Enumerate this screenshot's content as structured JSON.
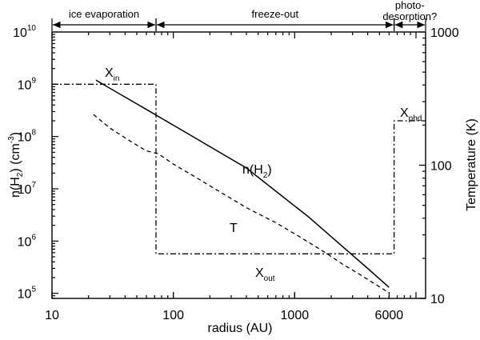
{
  "chart_data": {
    "type": "line",
    "title": "",
    "xlabel": "radius (AU)",
    "ylabel_left": {
      "text": "n(H",
      "sub": "2",
      "mid": ") (cm",
      "sup": "-3",
      "end": ")"
    },
    "ylabel_right": "Temperature (K)",
    "xscale": "log",
    "yscale": "log",
    "xlim": [
      10,
      12000
    ],
    "ylim_left": [
      80000,
      10000000000
    ],
    "ylim_right": [
      10,
      1000
    ],
    "grid": false,
    "x_ticks": [
      {
        "value": 10,
        "label": "10"
      },
      {
        "value": 100,
        "label": "100"
      },
      {
        "value": 1000,
        "label": "1000"
      },
      {
        "value": 6000,
        "label": "6000"
      }
    ],
    "y_ticks_left": [
      {
        "value": 100000,
        "base": "10",
        "exp": "5"
      },
      {
        "value": 1000000,
        "base": "10",
        "exp": "6"
      },
      {
        "value": 10000000,
        "base": "10",
        "exp": "7"
      },
      {
        "value": 100000000,
        "base": "10",
        "exp": "8"
      },
      {
        "value": 1000000000,
        "base": "10",
        "exp": "9"
      },
      {
        "value": 10000000000,
        "base": "10",
        "exp": "10"
      }
    ],
    "y_ticks_right": [
      {
        "value": 10,
        "label": "10"
      },
      {
        "value": 100,
        "label": "100"
      },
      {
        "value": 1000,
        "label": "1000"
      }
    ],
    "regions": [
      {
        "label": "ice evaporation",
        "x_start": 10,
        "x_end": 72
      },
      {
        "label": "freeze-out",
        "x_start": 72,
        "x_end": 6600
      },
      {
        "label_lines": [
          "photo-",
          "desorption?"
        ],
        "x_start": 6600,
        "x_end": 12000
      }
    ],
    "series": [
      {
        "name": "n(H2)",
        "axis": "left",
        "style": "solid",
        "x": [
          23,
          60,
          150,
          400,
          1300,
          2200,
          4000,
          6000
        ],
        "y": [
          1200000000,
          330000000,
          95000000,
          25000000,
          2900000,
          1000000,
          300000,
          130000
        ]
      },
      {
        "name": "T",
        "axis": "right",
        "style": "dashed",
        "x": [
          22,
          30,
          45,
          60,
          75,
          100,
          150,
          250,
          400,
          700,
          1100,
          1800,
          2500,
          3500,
          6000
        ],
        "y": [
          240,
          190,
          150,
          128,
          122,
          102,
          82,
          62,
          48,
          37,
          29,
          22,
          18,
          15,
          11
        ]
      },
      {
        "name": "X",
        "axis": "left",
        "style": "dashdot",
        "x": [
          10,
          72,
          72,
          6600,
          6600,
          12000
        ],
        "y": [
          1000000000,
          1000000000,
          570000,
          570000,
          200000000,
          200000000
        ]
      }
    ],
    "annotations": [
      {
        "main": "X",
        "sub": "in"
      },
      {
        "main": "X",
        "sub": "phd"
      },
      {
        "main": "n(H",
        "sub": "2",
        "end": ")"
      },
      {
        "main": "T"
      },
      {
        "main": "X",
        "sub": "out"
      }
    ]
  }
}
